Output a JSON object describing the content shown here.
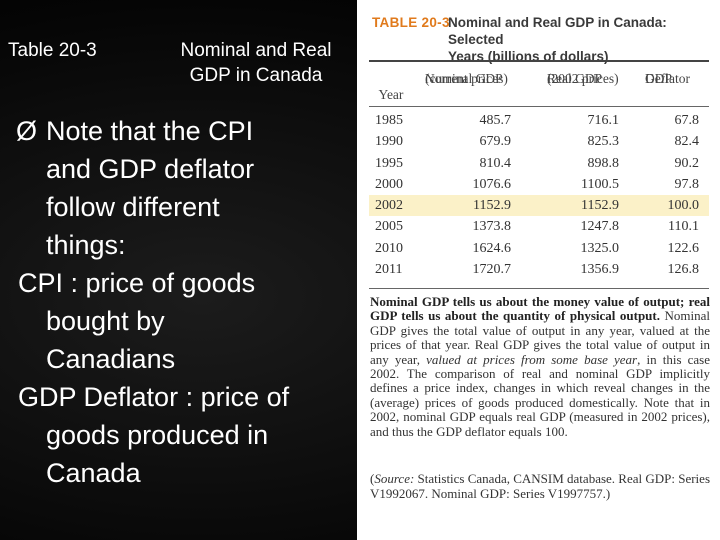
{
  "slide": {
    "table_number": "Table 20-3",
    "title_line1": "Nominal and Real",
    "title_line2": "GDP in Canada",
    "bullet_arrow": "Ø",
    "bullet_text_lines": [
      "Note that the CPI",
      "and GDP deflator",
      "follow different",
      "things:"
    ],
    "cpi_lines": [
      "CPI : price of goods",
      "bought by",
      "Canadians"
    ],
    "deflator_lines": [
      "GDP Deflator : price of",
      "goods produced in",
      "Canada"
    ]
  },
  "table": {
    "label": "TABLE 20-3",
    "caption_line1": "Nominal and Real GDP in Canada: Selected",
    "caption_line2": "Years (billions of dollars)",
    "headers": {
      "year": "Year",
      "nominal_1": "Nominal GDP",
      "nominal_2": "(current prices)",
      "real_1": "Real GDP",
      "real_2": "(2002 prices)",
      "deflator_1": "GDP",
      "deflator_2": "Deflator"
    },
    "rows": [
      {
        "year": "1985",
        "nominal": "485.7",
        "real": "716.1",
        "deflator": "67.8"
      },
      {
        "year": "1990",
        "nominal": "679.9",
        "real": "825.3",
        "deflator": "82.4"
      },
      {
        "year": "1995",
        "nominal": "810.4",
        "real": "898.8",
        "deflator": "90.2"
      },
      {
        "year": "2000",
        "nominal": "1076.6",
        "real": "1100.5",
        "deflator": "97.8"
      },
      {
        "year": "2002",
        "nominal": "1152.9",
        "real": "1152.9",
        "deflator": "100.0"
      },
      {
        "year": "2005",
        "nominal": "1373.8",
        "real": "1247.8",
        "deflator": "110.1"
      },
      {
        "year": "2010",
        "nominal": "1624.6",
        "real": "1325.0",
        "deflator": "122.6"
      },
      {
        "year": "2011",
        "nominal": "1720.7",
        "real": "1356.9",
        "deflator": "126.8"
      }
    ],
    "highlight_color": "#fbf1c8",
    "label_color": "#e07a1c",
    "note_bold": "Nominal GDP tells us about the money value of output; real GDP tells us about the quantity of physical output.",
    "note_a": " Nominal GDP gives the total value of output in any year, valued at the prices of that year. Real GDP gives the total value of output in any year, ",
    "note_italic": "valued at prices from some base year",
    "note_b": ", in this case 2002. The comparison of real and nominal GDP implicitly defines a price index, changes in which reveal changes in the (average) prices of goods produced domestically. Note that in 2002, nominal GDP equals real GDP (measured in 2002 prices), and thus the GDP deflator equals 100.",
    "source_open": "(",
    "source_label": "Source:",
    "source_text": " Statistics Canada, CANSIM database. Real GDP: Series V1992067. Nominal GDP: Series V1997757.)"
  }
}
